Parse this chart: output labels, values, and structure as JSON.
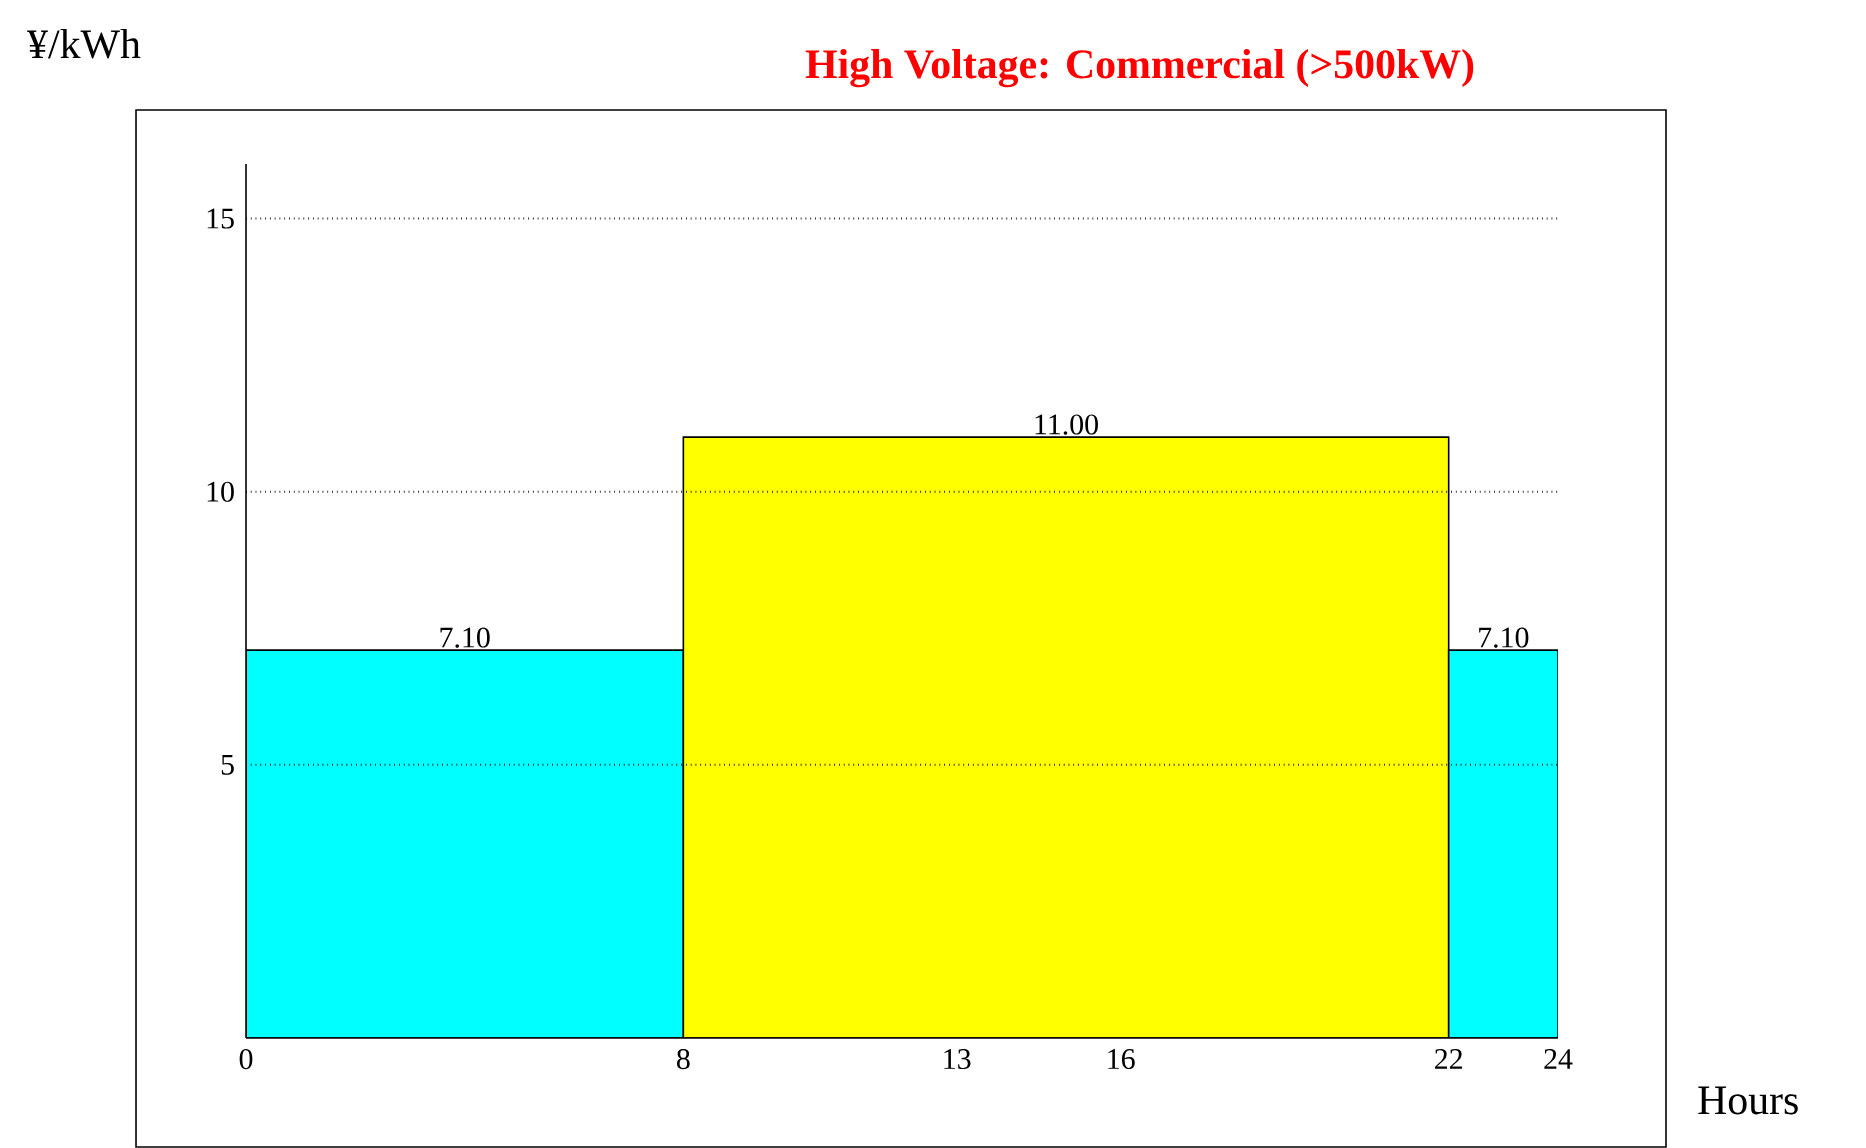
{
  "chart_data": {
    "type": "histogram",
    "title": "High Voltage: Commercial (>500kW)",
    "xlabel": "Hours",
    "ylabel": "¥/kWh",
    "bins": [
      0,
      8,
      22,
      24
    ],
    "values": [
      7.1,
      11.0,
      7.1
    ],
    "colors": [
      "#00ffff",
      "#ffff00",
      "#00ffff"
    ],
    "value_labels": [
      "7.10",
      "11.00",
      "7.10"
    ],
    "xlim": [
      0,
      24
    ],
    "ylim": [
      0,
      16
    ],
    "xticks": [
      0,
      8,
      13,
      16,
      22,
      24
    ],
    "yticks": [
      5,
      10,
      15
    ],
    "grid": "y"
  }
}
